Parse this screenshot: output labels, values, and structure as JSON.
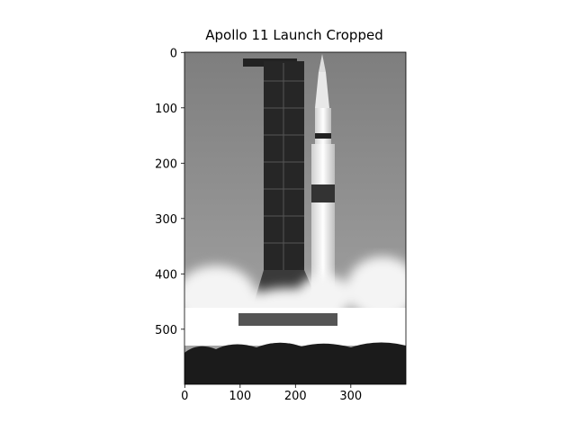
{
  "chart_data": {
    "type": "image",
    "title": "Apollo 11 Launch Cropped",
    "xlim": [
      -0.5,
      399.5
    ],
    "ylim": [
      599.5,
      -0.5
    ],
    "xticks": [
      0,
      100,
      200,
      300
    ],
    "yticks": [
      0,
      100,
      200,
      300,
      400,
      500
    ]
  }
}
